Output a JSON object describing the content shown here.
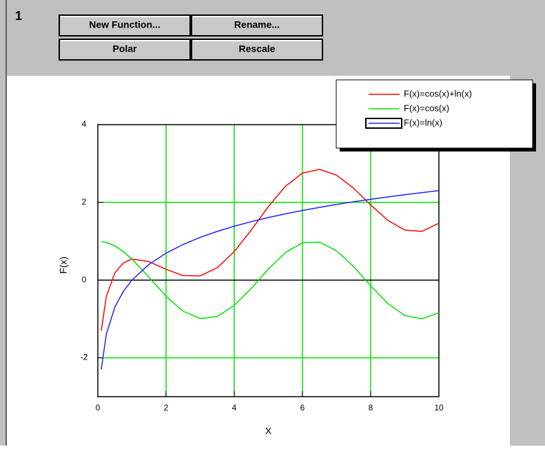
{
  "window": {
    "number": "1",
    "buttons": [
      "New Function...",
      "Rename...",
      "Polar",
      "Rescale"
    ]
  },
  "chart_data": {
    "type": "line",
    "x_label": "X",
    "y_label": "F(x)",
    "x": [
      0.1,
      0.25,
      0.5,
      0.75,
      1,
      1.5,
      2,
      2.5,
      3,
      3.5,
      4,
      4.5,
      5,
      5.5,
      6,
      6.5,
      7,
      7.5,
      8,
      8.5,
      9,
      9.5,
      10
    ],
    "series": [
      {
        "name": "F(x)=cos(x)+ln(x)",
        "color": "#ff0000",
        "values": [
          -1.308,
          -0.417,
          0.185,
          0.444,
          0.54,
          0.476,
          0.277,
          0.115,
          0.109,
          0.317,
          0.732,
          1.293,
          1.893,
          2.414,
          2.752,
          2.849,
          2.7,
          2.362,
          1.933,
          1.538,
          1.286,
          1.254,
          1.464
        ]
      },
      {
        "name": "F(x)=cos(x)",
        "color": "#00e000",
        "values": [
          0.995,
          0.969,
          0.878,
          0.732,
          0.54,
          0.071,
          -0.416,
          -0.801,
          -0.99,
          -0.936,
          -0.654,
          -0.211,
          0.284,
          0.709,
          0.96,
          0.977,
          0.754,
          0.347,
          -0.146,
          -0.602,
          -0.911,
          -0.997,
          -0.839
        ]
      },
      {
        "name": "F(x)=ln(x)",
        "color": "#2020ff",
        "values": [
          -2.303,
          -1.386,
          -0.693,
          -0.288,
          0,
          0.405,
          0.693,
          0.916,
          1.099,
          1.253,
          1.386,
          1.504,
          1.609,
          1.705,
          1.792,
          1.872,
          1.946,
          2.015,
          2.079,
          2.14,
          2.197,
          2.251,
          2.303
        ]
      }
    ],
    "xlim": [
      0,
      10
    ],
    "xticks": [
      0,
      2,
      4,
      6,
      8,
      10
    ],
    "ylim": [
      -3,
      4
    ],
    "yticks": [
      -2,
      0,
      2,
      4
    ],
    "grid": true,
    "grid_color": "#00e000",
    "legend": "upper right"
  }
}
